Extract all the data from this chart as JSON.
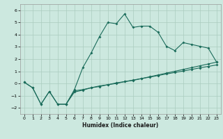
{
  "xlabel": "Humidex (Indice chaleur)",
  "bg_color": "#cce8df",
  "line_color": "#1a6b5a",
  "grid_color": "#aaccbf",
  "xlim": [
    -0.5,
    23.5
  ],
  "ylim": [
    -2.5,
    6.5
  ],
  "xticks": [
    0,
    1,
    2,
    3,
    4,
    5,
    6,
    7,
    8,
    9,
    10,
    11,
    12,
    13,
    14,
    15,
    16,
    17,
    18,
    19,
    20,
    21,
    22,
    23
  ],
  "yticks": [
    -2,
    -1,
    0,
    1,
    2,
    3,
    4,
    5,
    6
  ],
  "line2_x": [
    0,
    1,
    2,
    3,
    4,
    5,
    6,
    7,
    8,
    9,
    10,
    11,
    12,
    13,
    14,
    15,
    16,
    17,
    18,
    19,
    20,
    21,
    22,
    23
  ],
  "line2_y": [
    0.1,
    -0.35,
    -1.7,
    -0.65,
    -1.7,
    -1.7,
    -0.5,
    1.3,
    2.5,
    3.85,
    5.0,
    4.9,
    5.7,
    4.6,
    4.7,
    4.7,
    4.2,
    3.05,
    2.7,
    3.35,
    3.2,
    3.05,
    2.9,
    1.75
  ],
  "line3_x": [
    5,
    6,
    7,
    8,
    9,
    10,
    11,
    12,
    13,
    14,
    15,
    16,
    17,
    18,
    19,
    20,
    21,
    22,
    23
  ],
  "line3_y": [
    -1.7,
    -0.6,
    -0.5,
    -0.35,
    -0.25,
    -0.1,
    0.0,
    0.15,
    0.25,
    0.4,
    0.55,
    0.7,
    0.85,
    1.0,
    1.15,
    1.3,
    1.45,
    1.6,
    1.75
  ],
  "line1_x": [
    0,
    1,
    2,
    3,
    4,
    5,
    6,
    7,
    8,
    9,
    10,
    11,
    12,
    13,
    14,
    15,
    16,
    17,
    18,
    19,
    20,
    21,
    22,
    23
  ],
  "line1_y": [
    0.1,
    -0.35,
    -1.7,
    -0.65,
    -1.7,
    -1.7,
    -0.7,
    -0.55,
    -0.35,
    -0.2,
    -0.1,
    0.05,
    0.15,
    0.28,
    0.4,
    0.52,
    0.65,
    0.78,
    0.9,
    1.02,
    1.15,
    1.28,
    1.4,
    1.52
  ]
}
